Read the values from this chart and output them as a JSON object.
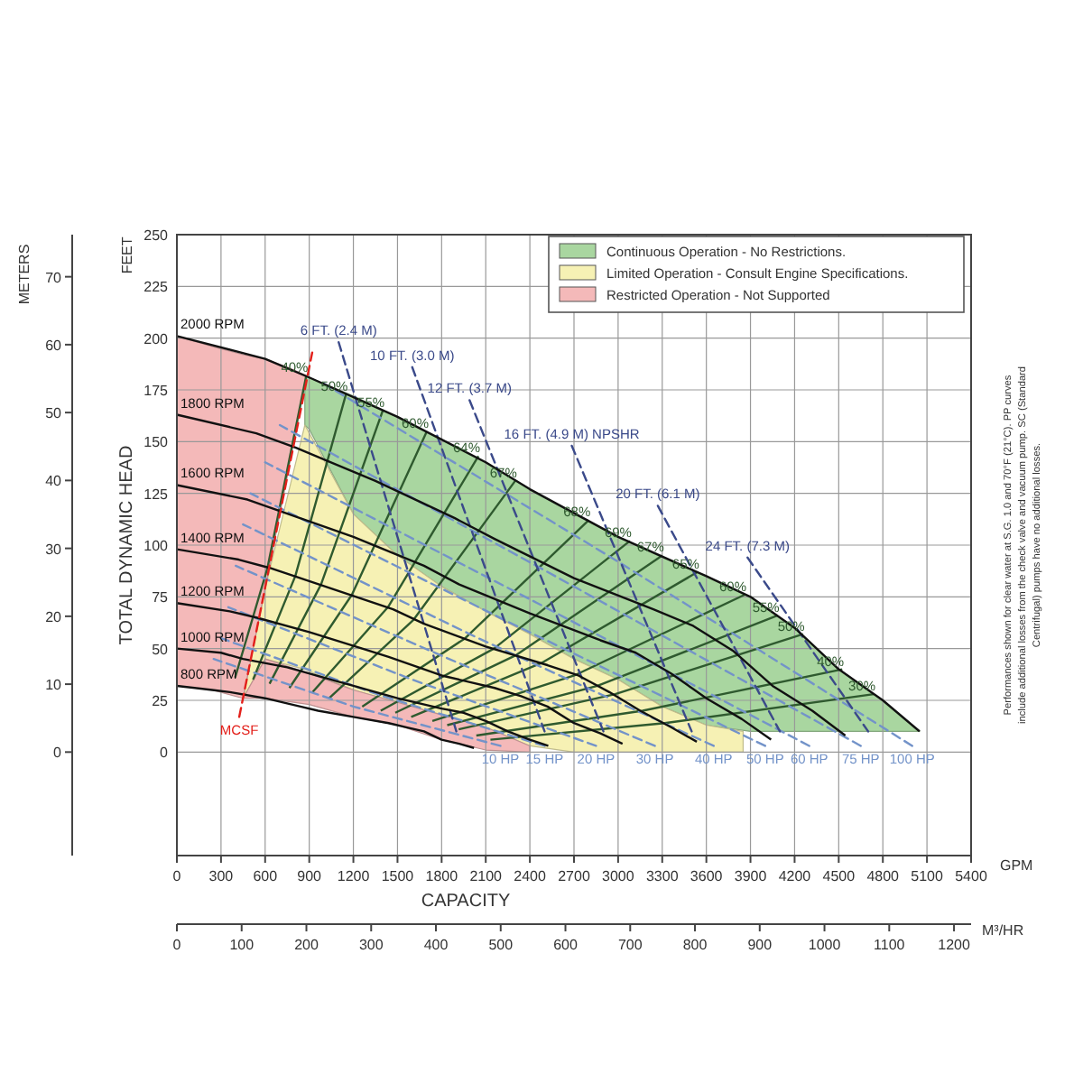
{
  "chart_data": {
    "type": "line",
    "xlabel": "CAPACITY",
    "ylabel": "TOTAL DYNAMIC HEAD",
    "y2label": "METERS",
    "x2label": "M³/HR",
    "annotations": [
      "FEET",
      "GPM",
      "Performances shown for clear water at S.G. 1.0 and 70°F (21°C). PP curves include additional losses from the check valve and vacuum pump. SC (Standard Centrifugal) pumps have no additional losses."
    ],
    "xlim": [
      0,
      5400
    ],
    "xticks": [
      0,
      300,
      600,
      900,
      1200,
      1500,
      1800,
      2100,
      2400,
      2700,
      3000,
      3300,
      3600,
      3900,
      4200,
      4500,
      4800,
      5100,
      5400
    ],
    "ylim": [
      -50,
      250
    ],
    "yticks": [
      0,
      25,
      50,
      75,
      100,
      125,
      150,
      175,
      200,
      225,
      250
    ],
    "y2lim": [
      -15.24,
      76.2
    ],
    "y2ticks": [
      0,
      10,
      20,
      30,
      40,
      50,
      60,
      70
    ],
    "x2lim": [
      0,
      1226.4
    ],
    "x2ticks": [
      0,
      100,
      200,
      300,
      400,
      500,
      600,
      700,
      800,
      900,
      1000,
      1100,
      1200
    ],
    "grid": true,
    "legend": "top right",
    "series": [
      {
        "type": "area",
        "name": "Continuous Operation - No Restrictions.",
        "color": "#a9d6a0",
        "x": [
          870,
          900,
          1200,
          1500,
          1800,
          2100,
          2400,
          2700,
          3000,
          3300,
          3600,
          3900,
          4200,
          4500,
          4800,
          5050,
          4800,
          4500,
          4200,
          3900,
          3600,
          3300,
          3000,
          2700,
          2400,
          2100,
          1800,
          1500,
          1200,
          900,
          870
        ],
        "values": [
          182,
          181,
          172,
          162,
          151,
          140,
          127,
          115,
          104,
          94,
          85,
          75,
          60,
          40,
          25,
          10,
          10,
          10,
          10,
          10,
          13,
          22,
          35,
          45,
          57,
          68,
          80,
          95,
          115,
          156,
          158
        ]
      },
      {
        "type": "area",
        "name": "Limited Operation - Consult Engine Specifications.",
        "color": "#f6f1b4",
        "x": [
          450,
          600,
          870,
          1200,
          1500,
          1800,
          2100,
          2400,
          2700,
          3000,
          3300,
          3600,
          3850,
          3850,
          3600,
          3300,
          3000,
          2700,
          2400,
          2100,
          1800,
          1500,
          1200,
          870,
          600
        ],
        "values": [
          26,
          79,
          158,
          115,
          95,
          80,
          68,
          57,
          45,
          35,
          22,
          13,
          10,
          0,
          0,
          0,
          0,
          0,
          3,
          12,
          18,
          24,
          30,
          40,
          45
        ]
      },
      {
        "type": "area",
        "name": "Restricted Operation - Not Supported",
        "color": "#f4b9b9",
        "x": [
          0,
          240,
          450,
          600,
          750,
          880,
          750,
          600,
          450,
          240,
          0
        ],
        "values": [
          201,
          196,
          192,
          190,
          186,
          182,
          133,
          79,
          26,
          30,
          32
        ]
      },
      {
        "type": "area",
        "color": "#f4b9b9",
        "x": [
          450,
          600,
          900,
          1200,
          1500,
          1800,
          2100,
          2400,
          2400,
          2100,
          1800,
          1500,
          1200,
          900,
          600
        ],
        "values": [
          26,
          45,
          38,
          30,
          24,
          18,
          12,
          3,
          0,
          1,
          6,
          13,
          17,
          23,
          26
        ]
      },
      {
        "name": "40%",
        "color": "#2f5a2f",
        "x": [
          880,
          616,
          396
        ],
        "values": [
          182,
          89,
          36
        ]
      },
      {
        "name": "50%",
        "color": "#2f5a2f",
        "x": [
          1150,
          805,
          518
        ],
        "values": [
          173,
          85,
          35
        ]
      },
      {
        "name": "55%",
        "color": "#2f5a2f",
        "x": [
          1400,
          980,
          630
        ],
        "values": [
          165,
          81,
          33
        ]
      },
      {
        "name": "60%",
        "color": "#2f5a2f",
        "x": [
          1700,
          1190,
          765
        ],
        "values": [
          155,
          76,
          31
        ]
      },
      {
        "name": "64%",
        "color": "#2f5a2f",
        "x": [
          2050,
          1435,
          923
        ],
        "values": [
          143,
          70,
          29
        ]
      },
      {
        "name": "67%",
        "color": "#2f5a2f",
        "x": [
          2300,
          1610,
          1035
        ],
        "values": [
          131,
          64,
          26
        ]
      },
      {
        "name": "68%",
        "color": "#2f5a2f",
        "x": [
          2800,
          1960,
          1260
        ],
        "values": [
          112,
          55,
          22
        ]
      },
      {
        "name": "69%",
        "color": "#2f5a2f",
        "x": [
          3080,
          2156,
          1386
        ],
        "values": [
          102,
          50,
          20
        ]
      },
      {
        "name": "67%",
        "color": "#2f5a2f",
        "x": [
          3300,
          2310,
          1485
        ],
        "values": [
          95,
          47,
          19
        ]
      },
      {
        "name": "65%",
        "color": "#2f5a2f",
        "x": [
          3540,
          2478,
          1593
        ],
        "values": [
          87,
          43,
          17
        ]
      },
      {
        "name": "60%",
        "color": "#2f5a2f",
        "x": [
          3860,
          2702,
          1737
        ],
        "values": [
          76,
          37,
          15
        ]
      },
      {
        "name": "55%",
        "color": "#2f5a2f",
        "x": [
          4085,
          2860,
          1838
        ],
        "values": [
          66,
          32,
          13
        ]
      },
      {
        "name": "50%",
        "color": "#2f5a2f",
        "x": [
          4257,
          2980,
          1916
        ],
        "values": [
          57,
          28,
          11
        ]
      },
      {
        "name": "40%",
        "color": "#2f5a2f",
        "x": [
          4524,
          3167,
          2036
        ],
        "values": [
          40,
          20,
          8
        ]
      },
      {
        "name": "30%",
        "color": "#2f5a2f",
        "x": [
          4738,
          3317,
          2132
        ],
        "values": [
          28,
          14,
          6
        ]
      },
      {
        "name": "10 HP",
        "color": "#7393c9",
        "line_style": "dashed",
        "x": [
          2200,
          1200,
          250
        ],
        "values": [
          3,
          22,
          45
        ]
      },
      {
        "name": "15 HP",
        "color": "#7393c9",
        "line_style": "dashed",
        "x": [
          2500,
          1400,
          300
        ],
        "values": [
          3,
          27,
          55
        ]
      },
      {
        "name": "20 HP",
        "color": "#7393c9",
        "line_style": "dashed",
        "x": [
          2850,
          1600,
          350
        ],
        "values": [
          3,
          35,
          70
        ]
      },
      {
        "name": "30 HP",
        "color": "#7393c9",
        "line_style": "dashed",
        "x": [
          3250,
          1850,
          400
        ],
        "values": [
          3,
          45,
          90
        ]
      },
      {
        "name": "40 HP",
        "color": "#7393c9",
        "line_style": "dashed",
        "x": [
          3650,
          2050,
          450
        ],
        "values": [
          3,
          55,
          110
        ]
      },
      {
        "name": "50 HP",
        "color": "#7393c9",
        "line_style": "dashed",
        "x": [
          4000,
          2250,
          500
        ],
        "values": [
          3,
          63,
          125
        ]
      },
      {
        "name": "60 HP",
        "color": "#7393c9",
        "line_style": "dashed",
        "x": [
          4300,
          2450,
          600
        ],
        "values": [
          3,
          72,
          140
        ]
      },
      {
        "name": "75 HP",
        "color": "#7393c9",
        "line_style": "dashed",
        "x": [
          4650,
          2700,
          700
        ],
        "values": [
          3,
          80,
          158
        ]
      },
      {
        "name": "100 HP",
        "color": "#7393c9",
        "line_style": "dashed",
        "x": [
          5000,
          3000,
          1000
        ],
        "values": [
          3,
          92,
          178
        ]
      },
      {
        "name": "6 FT. (2.4 M)",
        "color": "#3b4a8a",
        "line_style": "dashed",
        "x": [
          1100,
          1900
        ],
        "values": [
          198,
          10
        ]
      },
      {
        "name": "10 FT. (3.0 M)",
        "color": "#3b4a8a",
        "line_style": "dashed",
        "x": [
          1600,
          2500
        ],
        "values": [
          186,
          10
        ]
      },
      {
        "name": "12 FT. (3.7 M)",
        "color": "#3b4a8a",
        "line_style": "dashed",
        "x": [
          1990,
          2900
        ],
        "values": [
          170,
          10
        ]
      },
      {
        "name": "16 FT. (4.9 M) NPSHR",
        "color": "#3b4a8a",
        "line_style": "dashed",
        "x": [
          2685,
          3500
        ],
        "values": [
          148,
          10
        ]
      },
      {
        "name": "20 FT. (6.1 M)",
        "color": "#3b4a8a",
        "line_style": "dashed",
        "x": [
          3270,
          4100
        ],
        "values": [
          119,
          10
        ]
      },
      {
        "name": "24 FT. (7.3 M)",
        "color": "#3b4a8a",
        "line_style": "dashed",
        "x": [
          3880,
          4700
        ],
        "values": [
          94,
          10
        ]
      },
      {
        "name": "2000 RPM",
        "color": "#111111",
        "x": [
          0,
          600,
          900,
          1500,
          2100,
          2400,
          3000,
          3600,
          3900,
          4200,
          4500,
          4800,
          5050
        ],
        "values": [
          201,
          190,
          181,
          162,
          140,
          127,
          104,
          85,
          75,
          60,
          40,
          25,
          10
        ]
      },
      {
        "name": "1800 RPM",
        "color": "#111111",
        "x": [
          0,
          540,
          810,
          1350,
          1890,
          2160,
          2700,
          3240,
          3510,
          3780,
          4050,
          4320,
          4545
        ],
        "values": [
          163,
          154,
          147,
          131,
          113,
          103,
          84,
          69,
          61,
          49,
          32,
          20,
          8
        ]
      },
      {
        "name": "1600 RPM",
        "color": "#111111",
        "x": [
          0,
          480,
          720,
          1200,
          1680,
          1920,
          2400,
          2880,
          3120,
          3360,
          3600,
          3840,
          4040
        ],
        "values": [
          129,
          122,
          116,
          104,
          90,
          81,
          67,
          54,
          48,
          38,
          26,
          16,
          6
        ]
      },
      {
        "name": "1400 RPM",
        "color": "#111111",
        "x": [
          0,
          420,
          630,
          1050,
          1470,
          1680,
          2100,
          2520,
          2730,
          2940,
          3150,
          3360,
          3535
        ],
        "values": [
          98,
          93,
          89,
          79,
          69,
          62,
          51,
          42,
          37,
          29,
          20,
          12,
          5
        ]
      },
      {
        "name": "1200 RPM",
        "color": "#111111",
        "x": [
          0,
          360,
          540,
          900,
          1260,
          1440,
          1800,
          2160,
          2340,
          2520,
          2700,
          2880,
          3030
        ],
        "values": [
          72,
          68,
          65,
          58,
          50,
          46,
          37,
          31,
          27,
          22,
          14,
          9,
          4
        ]
      },
      {
        "name": "1000 RPM",
        "color": "#111111",
        "x": [
          0,
          300,
          450,
          750,
          1050,
          1200,
          1500,
          1800,
          1950,
          2100,
          2250,
          2400,
          2525
        ],
        "values": [
          50,
          48,
          45,
          41,
          35,
          32,
          26,
          21,
          19,
          15,
          10,
          6,
          3
        ]
      },
      {
        "name": "800 RPM",
        "color": "#111111",
        "x": [
          0,
          240,
          360,
          600,
          840,
          960,
          1200,
          1440,
          1560,
          1680,
          1800,
          1920,
          2020
        ],
        "values": [
          32,
          30,
          29,
          26,
          22,
          20,
          17,
          14,
          12,
          10,
          6,
          4,
          2
        ]
      },
      {
        "name": "MCSF",
        "color": "#e3201b",
        "line_style": "dashed",
        "x": [
          424,
          920
        ],
        "values": [
          17,
          193
        ]
      }
    ]
  }
}
